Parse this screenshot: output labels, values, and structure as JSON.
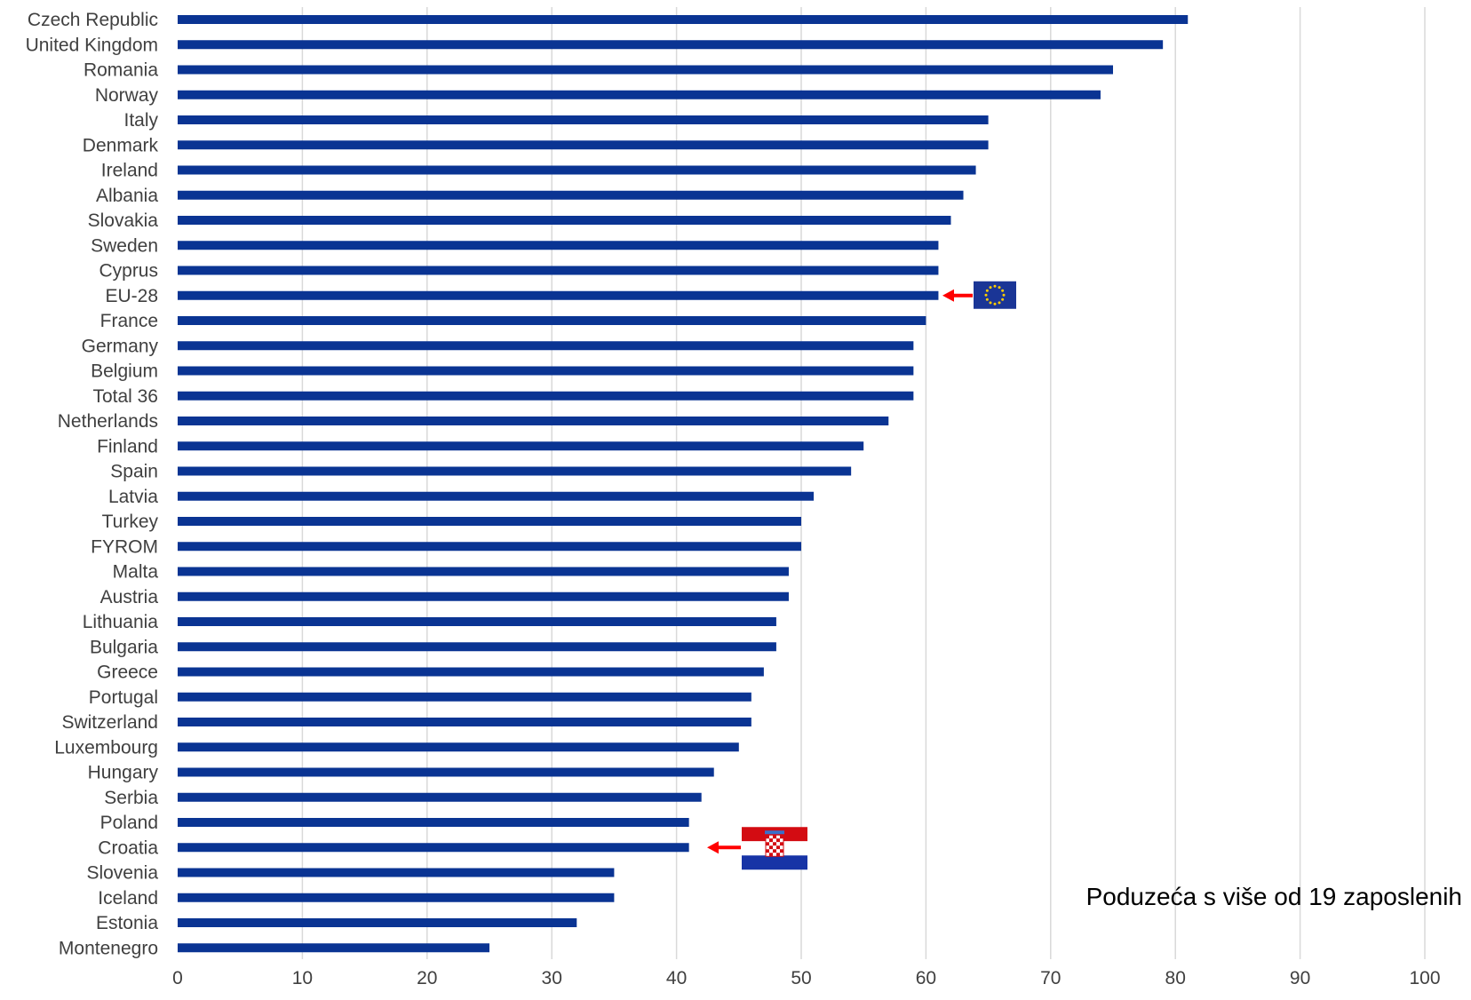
{
  "chart_data": {
    "type": "bar",
    "orientation": "horizontal",
    "categories": [
      "Czech Republic",
      "United Kingdom",
      "Romania",
      "Norway",
      "Italy",
      "Denmark",
      "Ireland",
      "Albania",
      "Slovakia",
      "Sweden",
      "Cyprus",
      "EU-28",
      "France",
      "Germany",
      "Belgium",
      "Total 36",
      "Netherlands",
      "Finland",
      "Spain",
      "Latvia",
      "Turkey",
      "FYROM",
      "Malta",
      "Austria",
      "Lithuania",
      "Bulgaria",
      "Greece",
      "Portugal",
      "Switzerland",
      "Luxembourg",
      "Hungary",
      "Serbia",
      "Poland",
      "Croatia",
      "Slovenia",
      "Iceland",
      "Estonia",
      "Montenegro"
    ],
    "values": [
      81,
      79,
      75,
      74,
      65,
      65,
      64,
      63,
      62,
      61,
      61,
      61,
      60,
      59,
      59,
      59,
      57,
      55,
      54,
      51,
      50,
      50,
      49,
      49,
      48,
      48,
      47,
      46,
      46,
      45,
      43,
      42,
      41,
      41,
      35,
      35,
      32,
      25
    ],
    "xlim": [
      0,
      100
    ],
    "xticks": [
      0,
      10,
      20,
      30,
      40,
      50,
      60,
      70,
      80,
      90,
      100
    ],
    "grid": "vertical",
    "legend": "none",
    "annotation": "Poduzeća s više od 19 zaposlenih",
    "highlights": [
      {
        "category": "EU-28",
        "marker": "eu-flag-icon"
      },
      {
        "category": "Croatia",
        "marker": "croatia-flag-icon"
      }
    ],
    "colors": {
      "bar": "#0a3493",
      "grid": "#d9d9d9",
      "arrow": "#ff0000",
      "text": "#404040"
    }
  }
}
